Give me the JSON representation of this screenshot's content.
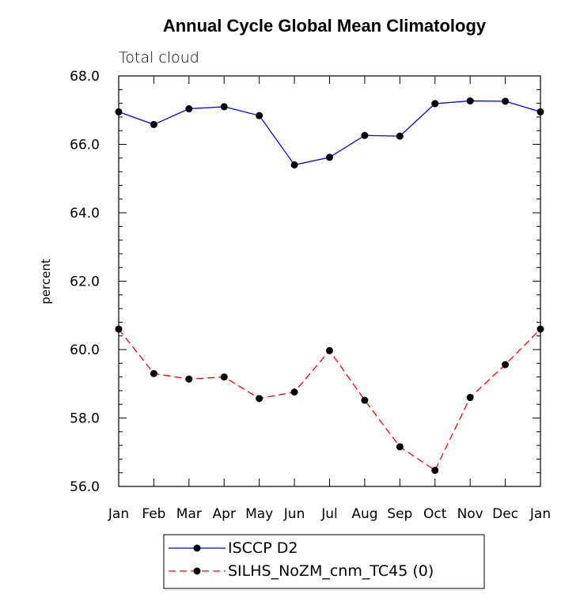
{
  "chart_data": {
    "type": "line",
    "title": "Annual Cycle Global Mean Climatology",
    "subtitle": "Total cloud",
    "ylabel": "percent",
    "xlabel": "",
    "categories": [
      "Jan",
      "Feb",
      "Mar",
      "Apr",
      "May",
      "Jun",
      "Jul",
      "Aug",
      "Sep",
      "Oct",
      "Nov",
      "Dec",
      "Jan"
    ],
    "ylim": [
      56.0,
      68.0
    ],
    "yticks": [
      "56.0",
      "58.0",
      "60.0",
      "62.0",
      "64.0",
      "66.0",
      "68.0"
    ],
    "grid": false,
    "legend_position": "bottom",
    "series": [
      {
        "name": "ISCCP D2",
        "color": "#0000ff",
        "dash": "solid",
        "values": [
          66.95,
          66.58,
          67.04,
          67.1,
          66.84,
          65.4,
          65.62,
          66.26,
          66.24,
          67.19,
          67.27,
          67.26,
          66.95
        ]
      },
      {
        "name": "SILHS_NoZM_cnm_TC45 (0)",
        "color": "#ff0000",
        "dash": "dashed",
        "values": [
          60.6,
          59.3,
          59.14,
          59.2,
          58.57,
          58.76,
          59.97,
          58.52,
          57.16,
          56.47,
          58.6,
          59.56,
          60.6
        ]
      }
    ]
  }
}
